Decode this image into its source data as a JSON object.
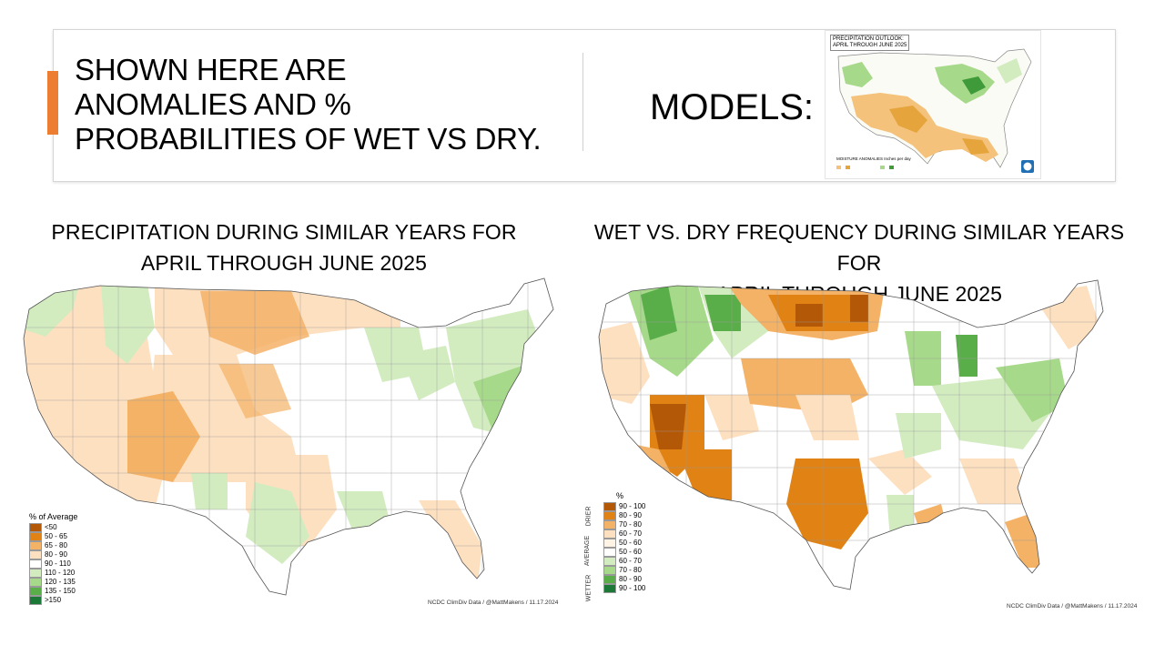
{
  "slide": {
    "heading_lines": [
      "SHOWN HERE ARE",
      "ANOMALIES AND %",
      "PROBABILITIES OF WET VS DRY."
    ],
    "models_label": "MODELS:",
    "accent_color": "#ed7d31"
  },
  "thumbnail": {
    "title_lines": [
      "PRECIPITATION OUTLOOK:",
      "APRIL THROUGH JUNE 2025"
    ],
    "legend_title": "MOISTURE ANOMALIES",
    "legend_subtitle": "Inches per day"
  },
  "map_left": {
    "title_lines": [
      "PRECIPITATION DURING SIMILAR YEARS FOR",
      "APRIL THROUGH JUNE 2025"
    ],
    "legend_title": "% of Average",
    "legend": [
      {
        "label": "<50",
        "color": "#b35806"
      },
      {
        "label": "50 - 65",
        "color": "#e08214"
      },
      {
        "label": "65 - 80",
        "color": "#f4b267"
      },
      {
        "label": "80 - 90",
        "color": "#fde0c0"
      },
      {
        "label": "90 - 110",
        "color": "#ffffff"
      },
      {
        "label": "110 - 120",
        "color": "#d2ecc0"
      },
      {
        "label": "120 - 135",
        "color": "#a6d98a"
      },
      {
        "label": "135 - 150",
        "color": "#5aae4a"
      },
      {
        "label": ">150",
        "color": "#1b7837"
      }
    ],
    "source": "NCDC ClimDiv Data / @MattMakens / 11.17.2024"
  },
  "map_right": {
    "title_lines": [
      "WET VS. DRY FREQUENCY DURING SIMILAR YEARS FOR",
      "APRIL THROUGH JUNE 2025"
    ],
    "legend_title": "%",
    "group_labels": {
      "drier": "DRIER",
      "average": "AVERAGE",
      "wetter": "WETTER"
    },
    "legend": [
      {
        "label": "90 - 100",
        "color": "#b35806"
      },
      {
        "label": "80 - 90",
        "color": "#e08214"
      },
      {
        "label": "70 - 80",
        "color": "#f4b267"
      },
      {
        "label": "60 - 70",
        "color": "#fde0c0"
      },
      {
        "label": "50 - 60",
        "color": "#fff3e6"
      },
      {
        "label": "50 - 60",
        "color": "#ffffff"
      },
      {
        "label": "60 - 70",
        "color": "#d2ecc0"
      },
      {
        "label": "70 - 80",
        "color": "#a6d98a"
      },
      {
        "label": "80 - 90",
        "color": "#5aae4a"
      },
      {
        "label": "90 - 100",
        "color": "#1b7837"
      }
    ],
    "source": "NCDC ClimDiv Data / @MattMakens / 11.17.2024"
  },
  "colors": {
    "orange_dark": "#b35806",
    "orange": "#e08214",
    "orange_mid": "#f4b267",
    "orange_light": "#fde0c0",
    "green_light": "#d2ecc0",
    "green_mid": "#a6d98a",
    "green": "#5aae4a",
    "green_dark": "#1b7837"
  }
}
